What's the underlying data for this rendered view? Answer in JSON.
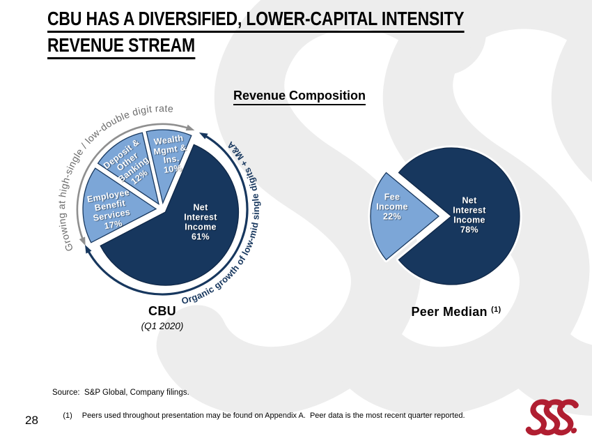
{
  "slide": {
    "title_lines": [
      "CBU HAS A DIVERSIFIED, LOWER-CAPITAL INTENSITY",
      "REVENUE STREAM"
    ],
    "section_title": "Revenue Composition",
    "page_number": "28",
    "footer": {
      "source_label": "Source:",
      "source_text": "S&P Global, Company filings.",
      "footnote_marker": "(1)",
      "footnote_text": "Peers used throughout presentation may be found on Appendix A.  Peer data is the most recent quarter reported."
    }
  },
  "colors": {
    "navy": "#17375E",
    "navy_border": "#0f2747",
    "light_blue": "#7CA6D7",
    "gray_arrow": "#8F8F8F",
    "gray_text": "#6b6b6b",
    "logo_red": "#B01E31",
    "watermark_gray": "#ededed"
  },
  "chart_data": [
    {
      "type": "pie",
      "name": "cbu-revenue-composition",
      "title": "CBU",
      "subtitle": "(Q1 2020)",
      "legend_position": "none",
      "slices": [
        {
          "label": "Net Interest Income",
          "value_pct": 61,
          "display_lines": [
            "Net",
            "Interest",
            "Income",
            "61%"
          ],
          "color_key": "navy"
        },
        {
          "label": "Employee Benefit Services",
          "value_pct": 17,
          "display_lines": [
            "Employee",
            "Benefit",
            "Services",
            "17%"
          ],
          "color_key": "light_blue"
        },
        {
          "label": "Deposit & Other Banking",
          "value_pct": 12,
          "display_lines": [
            "Deposit &",
            "Other",
            "Banking",
            "12%"
          ],
          "color_key": "light_blue"
        },
        {
          "label": "Wealth Mgmt & Ins.",
          "value_pct": 10,
          "display_lines": [
            "Wealth",
            "Mgmt &",
            "Ins.",
            "10%"
          ],
          "color_key": "light_blue"
        }
      ],
      "annotations": [
        {
          "text": "Growing at high-single / low-double digit rate",
          "applies_to": "fee businesses",
          "style": "gray"
        },
        {
          "text": "Organic growth of low-mid single digits + M&A",
          "applies_to": "net interest income",
          "style": "navy"
        }
      ]
    },
    {
      "type": "pie",
      "name": "peer-median-revenue-composition",
      "title": "Peer Median",
      "title_superscript": "(1)",
      "legend_position": "none",
      "slices": [
        {
          "label": "Net Interest Income",
          "value_pct": 78,
          "display_lines": [
            "Net",
            "Interest",
            "Income",
            "78%"
          ],
          "color_key": "navy"
        },
        {
          "label": "Fee Income",
          "value_pct": 22,
          "display_lines": [
            "Fee",
            "Income",
            "22%"
          ],
          "color_key": "light_blue"
        }
      ],
      "annotations": []
    }
  ]
}
